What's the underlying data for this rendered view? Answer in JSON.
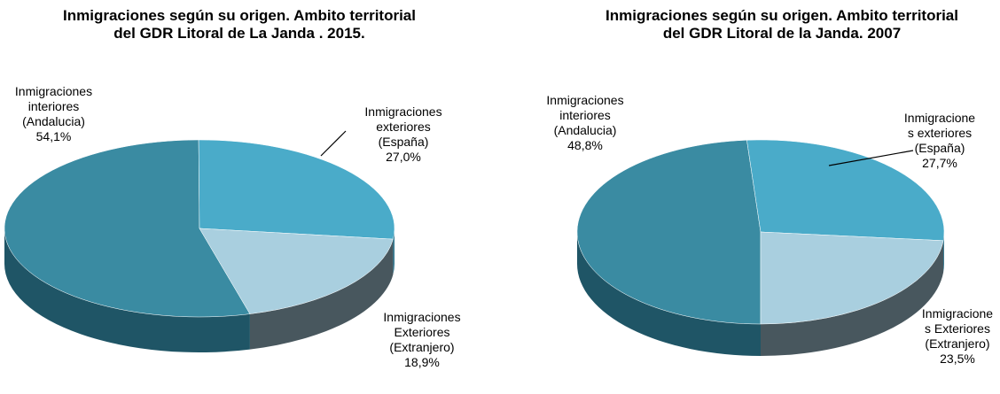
{
  "chart_data": [
    {
      "type": "pie3d",
      "title": "Inmigraciones  según  su origen. Ambito territorial del GDR Litoral de La Janda . 2015.",
      "categories": [
        "Inmigraciones interiores (Andalucia)",
        "Inmigraciones exteriores (España)",
        "Inmigraciones Exteriores (Extranjero)"
      ],
      "values": [
        54.1,
        27.0,
        18.9
      ],
      "value_labels": [
        "54,1%",
        "27,0%",
        "18,9%"
      ],
      "colors": [
        "#3a8ba2",
        "#4aabc9",
        "#a9cfdf"
      ]
    },
    {
      "type": "pie3d",
      "title": "Inmigraciones  según su origen. Ambito territorial del GDR Litoral de la Janda. 2007",
      "categories": [
        "Inmigraciones interiores (Andalucia)",
        "Inmigraciones exteriores (España)",
        "Inmigraciones Exteriores (Extranjero)"
      ],
      "values": [
        48.8,
        27.7,
        23.5
      ],
      "value_labels": [
        "48,8%",
        "27,7%",
        "23,5%"
      ],
      "colors": [
        "#3a8ba2",
        "#4aabc9",
        "#a9cfdf"
      ]
    }
  ]
}
